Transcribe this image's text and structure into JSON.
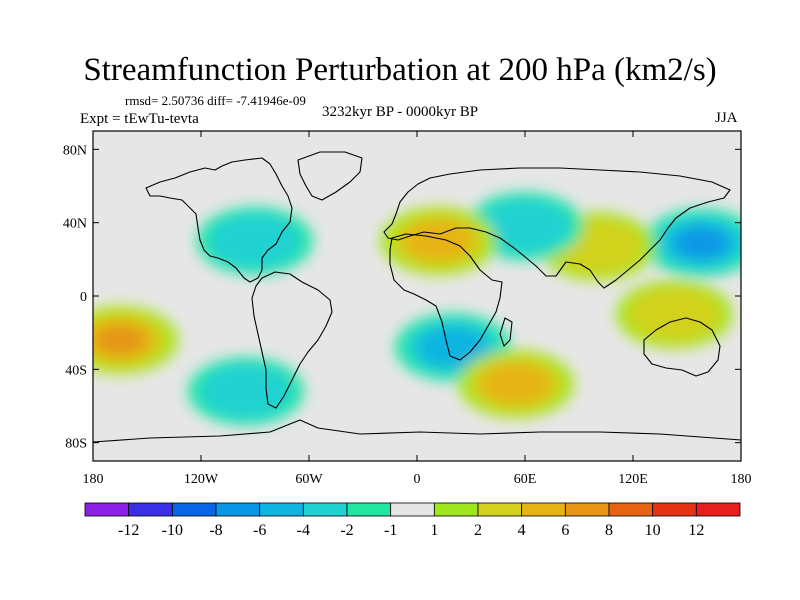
{
  "header": {
    "title": "Streamfunction Perturbation at 200 hPa (km2/s)",
    "stats": "rmsd= 2.50736 diff= -7.41946e-09",
    "experiment": "Expt = tEwTu-tevta",
    "period": "3232kyr BP - 0000kyr BP",
    "season": "JJA"
  },
  "chart_data": {
    "type": "heatmap",
    "title": "Streamfunction Perturbation at 200 hPa (km2/s)",
    "projection": "cylindrical equidistant",
    "xlim": [
      -180,
      180
    ],
    "ylim": [
      -90,
      90
    ],
    "x_ticks": [
      "180",
      "120W",
      "60W",
      "0",
      "60E",
      "120E",
      "180"
    ],
    "y_ticks": [
      "80N",
      "40N",
      "0",
      "40S",
      "80S"
    ],
    "colorbar": {
      "labels": [
        "-12",
        "-10",
        "-8",
        "-6",
        "-4",
        "-2",
        "-1",
        "1",
        "2",
        "4",
        "6",
        "8",
        "10",
        "12"
      ],
      "colors": [
        "#8c1fe6",
        "#3a2ee6",
        "#0a64e6",
        "#0a96e6",
        "#10b4e0",
        "#20d2d2",
        "#20e6a0",
        "#e6e6e6",
        "#a0e61e",
        "#d2d21e",
        "#e6b414",
        "#e69614",
        "#e66414",
        "#e63214",
        "#e61e1e"
      ]
    },
    "anomaly_centers": [
      {
        "lon": 158,
        "lat": 29,
        "value": -8
      },
      {
        "lon": 100,
        "lat": 27,
        "value": 4
      },
      {
        "lon": 60,
        "lat": 38,
        "value": -4
      },
      {
        "lon": 12,
        "lat": 30,
        "value": 6
      },
      {
        "lon": -90,
        "lat": 30,
        "value": -4
      },
      {
        "lon": -165,
        "lat": -24,
        "value": 8
      },
      {
        "lon": 20,
        "lat": -28,
        "value": -6
      },
      {
        "lon": 55,
        "lat": -48,
        "value": 6
      },
      {
        "lon": -95,
        "lat": -52,
        "value": -4
      },
      {
        "lon": 143,
        "lat": -10,
        "value": 4
      }
    ]
  }
}
